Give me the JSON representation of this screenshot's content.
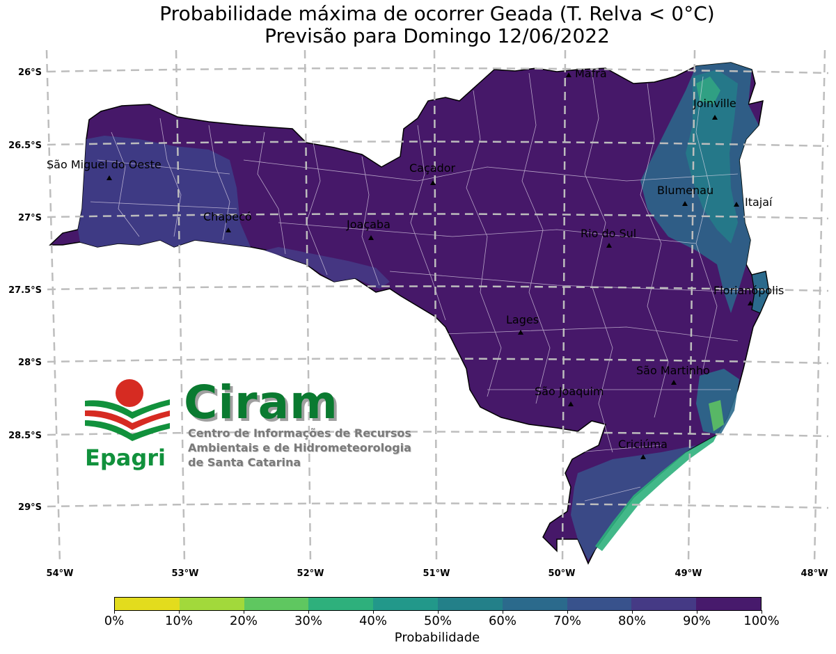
{
  "title": {
    "line1": "Probabilidade máxima de ocorrer Geada (T. Relva < 0°C)",
    "line2": "Previsão para Domingo 12/06/2022"
  },
  "axes": {
    "lat_labels": [
      "26°S",
      "26.5°S",
      "27°S",
      "27.5°S",
      "28°S",
      "28.5°S",
      "29°S"
    ],
    "lon_labels": [
      "54°W",
      "53°W",
      "52°W",
      "51°W",
      "50°W",
      "49°W",
      "48°W"
    ]
  },
  "cities": [
    {
      "name": "Mafra",
      "lat": -26.11,
      "lon": -49.81
    },
    {
      "name": "Joinville",
      "lat": -26.3,
      "lon": -48.85
    },
    {
      "name": "São Miguel do Oeste",
      "lat": -26.73,
      "lon": -53.52
    },
    {
      "name": "Caçador",
      "lat": -26.78,
      "lon": -51.01
    },
    {
      "name": "Blumenau",
      "lat": -26.92,
      "lon": -49.07
    },
    {
      "name": "Itajaí",
      "lat": -26.91,
      "lon": -48.66
    },
    {
      "name": "Chapecó",
      "lat": -27.1,
      "lon": -52.61
    },
    {
      "name": "Joaçaba",
      "lat": -27.17,
      "lon": -51.5
    },
    {
      "name": "Rio do Sul",
      "lat": -27.21,
      "lon": -49.64
    },
    {
      "name": "Florianópolis",
      "lat": -27.6,
      "lon": -48.55
    },
    {
      "name": "Lages",
      "lat": -27.82,
      "lon": -50.33
    },
    {
      "name": "São Martinho",
      "lat": -28.16,
      "lon": -48.98
    },
    {
      "name": "São Joaquim",
      "lat": -28.29,
      "lon": -49.93
    },
    {
      "name": "Criciúma",
      "lat": -28.68,
      "lon": -49.37
    }
  ],
  "colorbar": {
    "title": "Probabilidade",
    "tick_labels": [
      "0%",
      "10%",
      "20%",
      "30%",
      "40%",
      "50%",
      "60%",
      "70%",
      "80%",
      "90%",
      "100%"
    ],
    "colors": [
      "#e3dc1d",
      "#a2d93b",
      "#5fc760",
      "#2eb07c",
      "#22988a",
      "#238089",
      "#2b6a8c",
      "#38528c",
      "#453a85",
      "#471a6c"
    ]
  },
  "logo": {
    "name": "Ciram",
    "subtitle_lines": [
      "Centro de Informações de Recursos",
      "Ambientais e de Hidrometeorologia",
      "de Santa Catarina"
    ],
    "org": "Epagri"
  },
  "colors": {
    "land_main": "#461869",
    "west_zone": "#3e3c86",
    "coast_zone": "#2b6e8b",
    "coast_light": "#33a782",
    "grid": "#bdbdbd",
    "ciram_green": "#0a7a30",
    "epagri_red": "#d62b22"
  }
}
